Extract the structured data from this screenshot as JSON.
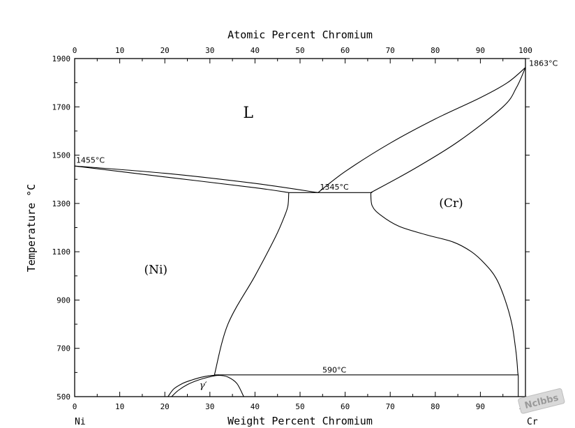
{
  "chart_data": {
    "type": "line",
    "title": "",
    "top_axis_label": "Atomic Percent Chromium",
    "xlabel": "Weight Percent Chromium",
    "ylabel": "Temperature °C",
    "xlim": [
      0,
      100
    ],
    "ylim": [
      500,
      1900
    ],
    "x_ticks": [
      0,
      10,
      20,
      30,
      40,
      50,
      60,
      70,
      80,
      90,
      100
    ],
    "y_ticks": [
      500,
      700,
      900,
      1100,
      1300,
      1500,
      1700,
      1900
    ],
    "top_ticks": [
      0,
      10,
      20,
      30,
      40,
      50,
      60,
      70,
      80,
      90,
      100
    ],
    "endpoint_left": "Ni",
    "endpoint_right": "Cr",
    "phase_labels": [
      {
        "text": "L",
        "x": 38.5,
        "y": 1655
      },
      {
        "text": "(Ni)",
        "x": 18,
        "y": 1010
      },
      {
        "text": "(Cr)",
        "x": 83.5,
        "y": 1285
      },
      {
        "text": "γ′",
        "x": 28.5,
        "y": 535
      }
    ],
    "annotations": [
      {
        "text": "1455°C",
        "x": 0.3,
        "y": 1468
      },
      {
        "text": "1863°C",
        "x": 100.8,
        "y": 1870
      },
      {
        "text": "1345°C",
        "x": 57.6,
        "y": 1358
      },
      {
        "text": "590°C",
        "x": 57.6,
        "y": 600
      }
    ],
    "series": [
      {
        "x": [
          0,
          20,
          40,
          54
        ],
        "y": [
          1455,
          1425,
          1383,
          1345
        ]
      },
      {
        "x": [
          0,
          20,
          40,
          47.5
        ],
        "y": [
          1455,
          1410,
          1365,
          1345
        ]
      },
      {
        "x": [
          54,
          60,
          70,
          80,
          90,
          96,
          100
        ],
        "y": [
          1345,
          1432,
          1550,
          1650,
          1738,
          1800,
          1863
        ]
      },
      {
        "x": [
          65.7,
          75,
          85,
          95,
          98,
          100
        ],
        "y": [
          1345,
          1440,
          1555,
          1700,
          1780,
          1863
        ]
      },
      {
        "x": [
          47.5,
          66
        ],
        "y": [
          1345,
          1345
        ]
      },
      {
        "x": [
          47.5,
          47.3,
          46.5,
          44.5,
          40,
          34,
          31
        ],
        "y": [
          1345,
          1290,
          1245,
          1160,
          1000,
          800,
          590
        ]
      },
      {
        "x": [
          65.7,
          66,
          68,
          72,
          78,
          84,
          88,
          91,
          93.5,
          95.5,
          97,
          97.8,
          98.1,
          98.3,
          98.4
        ],
        "y": [
          1345,
          1290,
          1250,
          1205,
          1170,
          1140,
          1100,
          1050,
          990,
          900,
          800,
          700,
          650,
          600,
          590
        ]
      },
      {
        "x": [
          31,
          98.4
        ],
        "y": [
          590,
          590
        ]
      },
      {
        "x": [
          98.4,
          98.4
        ],
        "y": [
          590,
          500
        ]
      },
      {
        "x": [
          20.7,
          22,
          24,
          26,
          28,
          30,
          32
        ],
        "y": [
          500,
          532,
          555,
          569,
          580,
          587,
          590
        ]
      },
      {
        "x": [
          21.5,
          23,
          25,
          27.5,
          30,
          32,
          34,
          36,
          37.5
        ],
        "y": [
          500,
          526,
          550,
          569,
          582,
          588,
          581,
          554,
          500
        ]
      }
    ]
  },
  "watermark": {
    "text": "Nclbbs"
  }
}
